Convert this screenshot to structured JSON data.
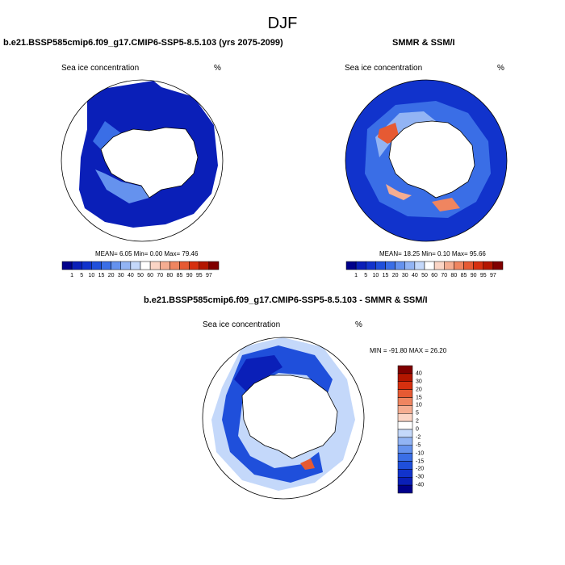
{
  "figure": {
    "title": "DJF"
  },
  "panels": [
    {
      "title": "b.e21.BSSP585cmip6.f09_g17.CMIP6-SSP5-8.5.103 (yrs 2075-2099)",
      "variable": "Sea ice concentration",
      "units": "%",
      "stats": "MEAN=   6.05  Min=   0.00  Max=  79.46"
    },
    {
      "title": "SMMR & SSM/I",
      "variable": "Sea ice concentration",
      "units": "%",
      "stats": "MEAN=  18.25  Min=   0.10  Max=  95.66"
    },
    {
      "title": "b.e21.BSSP585cmip6.f09_g17.CMIP6-SSP5-8.5.103 - SMMR & SSM/I",
      "variable": "Sea ice concentration",
      "units": "%",
      "stats": "MIN = -91.80 MAX =  26.20"
    }
  ],
  "colorbar_concentration": {
    "labels": [
      "1",
      "5",
      "10",
      "15",
      "20",
      "30",
      "40",
      "50",
      "60",
      "70",
      "80",
      "85",
      "90",
      "95",
      "97"
    ],
    "colors": [
      "#00008b",
      "#0a1fb8",
      "#1133cc",
      "#1f4fdb",
      "#3a6ee6",
      "#6592ee",
      "#92b4f4",
      "#c4d8fa",
      "#ffffff",
      "#fbd5c5",
      "#f5ad91",
      "#ef8560",
      "#e65a33",
      "#d6300f",
      "#b31600",
      "#800000"
    ]
  },
  "colorbar_difference": {
    "labels": [
      "40",
      "30",
      "20",
      "15",
      "10",
      "5",
      "2",
      "0",
      "-2",
      "-5",
      "-10",
      "-15",
      "-20",
      "-30",
      "-40"
    ],
    "colors": [
      "#800000",
      "#b31600",
      "#d6300f",
      "#e65a33",
      "#ef8560",
      "#f5ad91",
      "#fbd5c5",
      "#ffffff",
      "#c4d8fa",
      "#92b4f4",
      "#6592ee",
      "#3a6ee6",
      "#1f4fdb",
      "#1133cc",
      "#0a1fb8",
      "#00008b"
    ]
  }
}
